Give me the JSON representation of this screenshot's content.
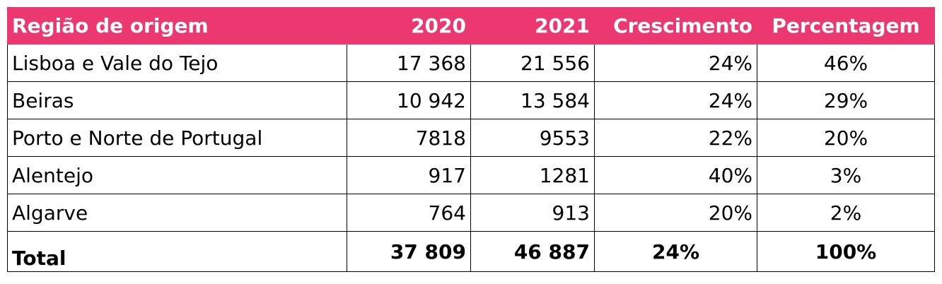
{
  "table": {
    "header": [
      "Região de origem",
      "2020",
      "2021",
      "Crescimento",
      "Percentagem"
    ],
    "rows": [
      [
        "Lisboa e Vale do Tejo",
        "17 368",
        "21 556",
        "24%",
        "46%"
      ],
      [
        "Beiras",
        "10 942",
        "13 584",
        "24%",
        "29%"
      ],
      [
        "Porto e Norte de Portugal",
        "7818",
        "9553",
        "22%",
        "20%"
      ],
      [
        "Alentejo",
        "917",
        "1281",
        "40%",
        "3%"
      ],
      [
        "Algarve",
        "764",
        "913",
        "20%",
        "2%"
      ]
    ],
    "total": [
      "Total",
      "37 809",
      "46 887",
      "24%",
      "100%"
    ]
  }
}
